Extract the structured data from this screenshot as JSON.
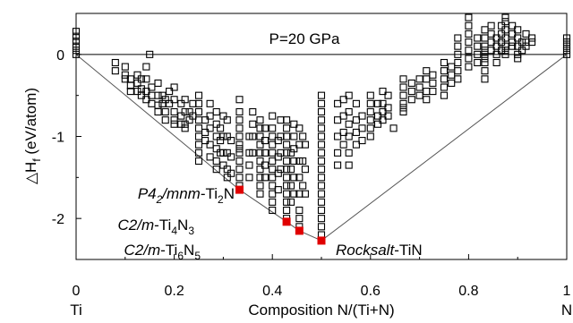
{
  "chart_data": {
    "type": "scatter",
    "title": "",
    "annotation_pressure": "P=20 GPa",
    "xlabel": "Composition N/(Ti+N)",
    "ylabel_main": "△H",
    "ylabel_sub": "f",
    "ylabel_unit": " (eV/atom)",
    "xlim": [
      0,
      1
    ],
    "ylim": [
      -2.5,
      0.5
    ],
    "x_ticks": [
      0,
      0.2,
      0.4,
      0.6,
      0.8,
      1
    ],
    "x_tick_labels": [
      "0",
      "0.2",
      "0.4",
      "0.6",
      "0.8",
      "1"
    ],
    "y_ticks": [
      0,
      -1,
      -2
    ],
    "y_tick_labels": [
      "0",
      "-1",
      "-2"
    ],
    "endpoint_labels": {
      "left": "Ti",
      "right": "N"
    },
    "marker_color": "#000000",
    "stable_color": "#e00000",
    "convex_hull": [
      [
        0,
        0
      ],
      [
        0.333,
        -1.65
      ],
      [
        0.429,
        -2.04
      ],
      [
        0.455,
        -2.15
      ],
      [
        0.5,
        -2.27
      ],
      [
        1,
        0
      ]
    ],
    "stable_phases": [
      {
        "x": 0.333,
        "y": -1.65,
        "label_italic": "P4",
        "label_sub1": "2",
        "label_italic2": "/mnm",
        "label_rest": "-Ti",
        "label_sub2": "2",
        "label_tail": "N"
      },
      {
        "x": 0.429,
        "y": -2.04,
        "label_italic": "C2/m",
        "label_rest": "-Ti",
        "label_sub1": "4",
        "label_mid": "N",
        "label_sub2": "3"
      },
      {
        "x": 0.455,
        "y": -2.15,
        "label_italic": "C2/m",
        "label_rest": "-Ti",
        "label_sub1": "6",
        "label_mid": "N",
        "label_sub2": "5"
      },
      {
        "x": 0.5,
        "y": -2.27,
        "label_italic": "Rocksalt",
        "label_rest": "-TiN"
      }
    ],
    "series": [
      {
        "x": 0,
        "y": [
          0.28,
          0.22,
          0.16,
          0.1,
          0.05,
          0.0
        ]
      },
      {
        "x": 0.08,
        "y": [
          -0.1,
          -0.2
        ]
      },
      {
        "x": 0.1,
        "y": [
          -0.15,
          -0.25,
          -0.3
        ]
      },
      {
        "x": 0.111,
        "y": [
          -0.3,
          -0.38,
          -0.45
        ]
      },
      {
        "x": 0.125,
        "y": [
          -0.35,
          -0.45,
          -0.25
        ]
      },
      {
        "x": 0.133,
        "y": [
          -0.3,
          -0.42,
          -0.5
        ]
      },
      {
        "x": 0.143,
        "y": [
          -0.15,
          -0.3,
          -0.45,
          -0.55
        ]
      },
      {
        "x": 0.15,
        "y": [
          0.0
        ]
      },
      {
        "x": 0.154,
        "y": [
          -0.4,
          -0.5,
          -0.6
        ]
      },
      {
        "x": 0.167,
        "y": [
          -0.35,
          -0.5,
          -0.62,
          -0.7
        ]
      },
      {
        "x": 0.176,
        "y": [
          -0.5,
          -0.6
        ]
      },
      {
        "x": 0.182,
        "y": [
          -0.55,
          -0.7,
          -0.8
        ]
      },
      {
        "x": 0.19,
        "y": [
          -0.45,
          -0.6
        ]
      },
      {
        "x": 0.2,
        "y": [
          -0.4,
          -0.55,
          -0.7,
          -0.8,
          -0.85
        ]
      },
      {
        "x": 0.214,
        "y": [
          -0.6,
          -0.75,
          -0.85
        ]
      },
      {
        "x": 0.222,
        "y": [
          -0.55,
          -0.7,
          -0.85,
          -0.9
        ]
      },
      {
        "x": 0.231,
        "y": [
          -0.7,
          -0.8
        ]
      },
      {
        "x": 0.238,
        "y": [
          -0.6,
          -0.75
        ]
      },
      {
        "x": 0.25,
        "y": [
          -0.5,
          -0.6,
          -0.7,
          -0.8,
          -0.9,
          -1.0,
          -1.1,
          -1.2,
          -1.3
        ]
      },
      {
        "x": 0.263,
        "y": [
          -0.8,
          -0.95,
          -1.05
        ]
      },
      {
        "x": 0.273,
        "y": [
          -0.6,
          -0.75,
          -0.9,
          -1.1,
          -1.25
        ]
      },
      {
        "x": 0.286,
        "y": [
          -0.7,
          -0.85,
          -1.0,
          -1.15,
          -1.3,
          -1.4
        ]
      },
      {
        "x": 0.294,
        "y": [
          -0.9,
          -1.05,
          -1.2
        ]
      },
      {
        "x": 0.3,
        "y": [
          -0.75,
          -1.0,
          -1.2,
          -1.35
        ]
      },
      {
        "x": 0.308,
        "y": [
          -0.8,
          -1.0,
          -1.2,
          -1.4,
          -1.5
        ]
      },
      {
        "x": 0.316,
        "y": [
          -1.05,
          -1.25,
          -1.45
        ]
      },
      {
        "x": 0.333,
        "y": [
          -0.55,
          -0.7,
          -0.8,
          -0.9,
          -1.0,
          -1.1,
          -1.15,
          -1.2,
          -1.3,
          -1.4,
          -1.5,
          -1.6
        ]
      },
      {
        "x": 0.353,
        "y": [
          -1.0,
          -1.2,
          -1.35,
          -1.5
        ]
      },
      {
        "x": 0.36,
        "y": [
          -0.7,
          -0.85,
          -1.0,
          -1.2
        ]
      },
      {
        "x": 0.375,
        "y": [
          -0.8,
          -0.9,
          -1.0,
          -1.1,
          -1.2,
          -1.3,
          -1.4,
          -1.5,
          -1.6,
          -1.7
        ]
      },
      {
        "x": 0.385,
        "y": [
          -0.9,
          -1.05,
          -1.2,
          -1.35,
          -1.5
        ]
      },
      {
        "x": 0.4,
        "y": [
          -0.75,
          -0.9,
          -1.0,
          -1.1,
          -1.2,
          -1.3,
          -1.4,
          -1.5,
          -1.6,
          -1.7,
          -1.8,
          -1.9
        ]
      },
      {
        "x": 0.412,
        "y": [
          -1.05,
          -1.25,
          -1.45,
          -1.65
        ]
      },
      {
        "x": 0.417,
        "y": [
          -0.8,
          -1.0,
          -1.2,
          -1.4
        ]
      },
      {
        "x": 0.429,
        "y": [
          -0.8,
          -0.9,
          -1.0,
          -1.1,
          -1.2,
          -1.3,
          -1.4,
          -1.5,
          -1.6,
          -1.7,
          -1.8,
          -1.9,
          -2.0
        ]
      },
      {
        "x": 0.438,
        "y": [
          -1.2,
          -1.4,
          -1.6,
          -1.8
        ]
      },
      {
        "x": 0.444,
        "y": [
          -0.85,
          -1.0,
          -1.15,
          -1.3,
          -1.5,
          -1.7
        ]
      },
      {
        "x": 0.455,
        "y": [
          -0.9,
          -1.1,
          -1.3,
          -1.5,
          -1.7,
          -1.9,
          -2.0,
          -2.1
        ]
      },
      {
        "x": 0.462,
        "y": [
          -1.0,
          -1.3,
          -1.6
        ]
      },
      {
        "x": 0.467,
        "y": [
          -1.1,
          -1.4,
          -1.7
        ]
      },
      {
        "x": 0.5,
        "y": [
          -0.5,
          -0.6,
          -0.7,
          -0.8,
          -0.9,
          -1.0,
          -1.1,
          -1.2,
          -1.3,
          -1.4,
          -1.5,
          -1.6,
          -1.7,
          -1.8,
          -1.9,
          -2.0,
          -2.1,
          -2.2
        ]
      },
      {
        "x": 0.533,
        "y": [
          -0.6,
          -0.8,
          -1.0,
          -1.2,
          -1.35
        ]
      },
      {
        "x": 0.545,
        "y": [
          -0.55,
          -0.75,
          -0.95,
          -1.1
        ]
      },
      {
        "x": 0.556,
        "y": [
          -0.5,
          -0.7,
          -0.85,
          -1.0,
          -1.2,
          -1.35
        ]
      },
      {
        "x": 0.571,
        "y": [
          -0.6,
          -0.8,
          -0.95,
          -1.1
        ]
      },
      {
        "x": 0.583,
        "y": [
          -0.75,
          -0.9,
          -1.05
        ]
      },
      {
        "x": 0.6,
        "y": [
          -0.5,
          -0.6,
          -0.7,
          -0.8,
          -0.9,
          -1.0
        ]
      },
      {
        "x": 0.615,
        "y": [
          -0.6,
          -0.75,
          -0.85
        ]
      },
      {
        "x": 0.625,
        "y": [
          -0.45,
          -0.6,
          -0.7,
          -0.8
        ]
      },
      {
        "x": 0.636,
        "y": [
          -0.5,
          -0.65,
          -0.75
        ]
      },
      {
        "x": 0.647,
        "y": [
          -0.9
        ]
      },
      {
        "x": 0.667,
        "y": [
          -0.3,
          -0.4,
          -0.5,
          -0.6,
          -0.65,
          -0.7
        ]
      },
      {
        "x": 0.684,
        "y": [
          -0.35,
          -0.45,
          -0.55
        ]
      },
      {
        "x": 0.7,
        "y": [
          -0.3,
          -0.4,
          -0.5
        ]
      },
      {
        "x": 0.714,
        "y": [
          -0.2,
          -0.3,
          -0.45,
          -0.55
        ]
      },
      {
        "x": 0.727,
        "y": [
          -0.25,
          -0.35,
          -0.45
        ]
      },
      {
        "x": 0.75,
        "y": [
          -0.1,
          -0.2,
          -0.3,
          -0.4,
          -0.5
        ]
      },
      {
        "x": 0.765,
        "y": [
          -0.15,
          -0.25,
          -0.35
        ]
      },
      {
        "x": 0.778,
        "y": [
          0.2,
          0.1,
          0.0,
          -0.1,
          -0.2,
          -0.3
        ]
      },
      {
        "x": 0.8,
        "y": [
          0.45,
          0.35,
          0.25,
          0.15,
          0.05,
          -0.05,
          -0.15
        ]
      },
      {
        "x": 0.818,
        "y": [
          0.2,
          0.1,
          0.0,
          -0.1
        ]
      },
      {
        "x": 0.833,
        "y": [
          0.3,
          0.2,
          0.1,
          0.05,
          0.0,
          -0.05,
          -0.1,
          -0.2,
          -0.3
        ]
      },
      {
        "x": 0.846,
        "y": [
          0.35,
          0.25,
          0.15,
          0.05
        ]
      },
      {
        "x": 0.857,
        "y": [
          0.2,
          0.1,
          0.0,
          -0.1
        ]
      },
      {
        "x": 0.867,
        "y": [
          0.35,
          0.25,
          0.15,
          0.05
        ]
      },
      {
        "x": 0.875,
        "y": [
          0.45,
          0.4,
          0.3,
          0.2,
          0.1,
          0.05,
          0.0
        ]
      },
      {
        "x": 0.889,
        "y": [
          0.35,
          0.25,
          0.15,
          0.1
        ]
      },
      {
        "x": 0.9,
        "y": [
          0.3,
          0.2,
          0.1,
          0.0,
          -0.05
        ]
      },
      {
        "x": 0.909,
        "y": [
          0.15,
          0.05
        ]
      },
      {
        "x": 0.917,
        "y": [
          0.25,
          0.15,
          0.1
        ]
      },
      {
        "x": 0.929,
        "y": [
          0.2,
          0.15
        ]
      },
      {
        "x": 1,
        "y": [
          0.2,
          0.15,
          0.1,
          0.05,
          0.0
        ]
      }
    ]
  }
}
